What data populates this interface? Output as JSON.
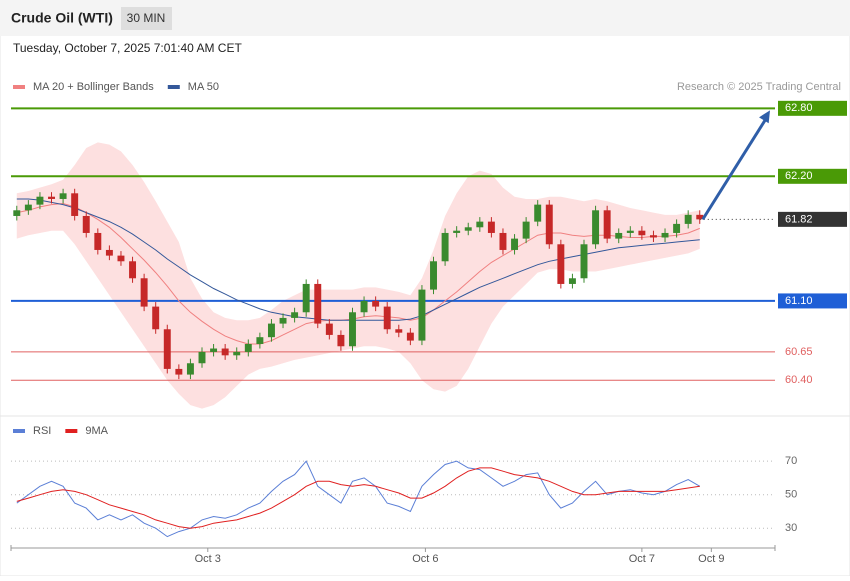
{
  "header": {
    "title": "Crude Oil (WTI)",
    "interval": "30 MIN",
    "date": "Tuesday, October 7, 2025 7:01:40 AM CET",
    "attribution": "Research © 2025 Trading Central"
  },
  "chart_data": [
    {
      "type": "candlestick",
      "xlim": [
        -0.5,
        65.5
      ],
      "ylim": [
        60.08,
        62.9
      ],
      "up_color": "#3a8a2e",
      "down_color": "#c62828",
      "open": [
        61.85,
        61.9,
        61.95,
        62.02,
        62.0,
        62.05,
        61.85,
        61.7,
        61.55,
        61.5,
        61.45,
        61.3,
        61.05,
        60.85,
        60.5,
        60.45,
        60.55,
        60.65,
        60.68,
        60.62,
        60.65,
        60.72,
        60.78,
        60.9,
        60.95,
        61.0,
        61.25,
        60.9,
        60.8,
        60.7,
        61.0,
        61.1,
        61.05,
        60.85,
        60.82,
        60.75,
        61.2,
        61.45,
        61.7,
        61.72,
        61.75,
        61.8,
        61.7,
        61.55,
        61.65,
        61.8,
        61.95,
        61.6,
        61.25,
        61.3,
        61.6,
        61.9,
        61.65,
        61.7,
        61.72,
        61.68,
        61.66,
        61.7,
        61.78,
        61.86
      ],
      "high": [
        61.94,
        61.99,
        62.06,
        62.06,
        62.09,
        62.09,
        61.89,
        61.74,
        61.59,
        61.54,
        61.49,
        61.34,
        61.09,
        60.89,
        60.54,
        60.59,
        60.69,
        60.72,
        60.72,
        60.69,
        60.76,
        60.82,
        60.94,
        60.99,
        61.04,
        61.29,
        61.29,
        60.94,
        60.84,
        61.04,
        61.14,
        61.14,
        61.09,
        60.89,
        60.86,
        61.24,
        61.49,
        61.74,
        61.76,
        61.79,
        61.84,
        61.84,
        61.74,
        61.69,
        61.84,
        61.99,
        61.99,
        61.64,
        61.34,
        61.64,
        61.94,
        61.94,
        61.74,
        61.76,
        61.76,
        61.72,
        61.74,
        61.82,
        61.9,
        61.9
      ],
      "low": [
        61.81,
        61.86,
        61.91,
        61.96,
        61.96,
        61.81,
        61.66,
        61.51,
        61.46,
        61.41,
        61.26,
        61.01,
        60.81,
        60.46,
        60.41,
        60.41,
        60.51,
        60.61,
        60.58,
        60.58,
        60.61,
        60.68,
        60.74,
        60.86,
        60.91,
        60.96,
        60.86,
        60.76,
        60.66,
        60.66,
        60.96,
        61.01,
        60.81,
        60.78,
        60.71,
        60.71,
        61.16,
        61.41,
        61.66,
        61.68,
        61.71,
        61.66,
        61.51,
        61.51,
        61.61,
        61.76,
        61.56,
        61.21,
        61.21,
        61.26,
        61.56,
        61.61,
        61.61,
        61.66,
        61.64,
        61.62,
        61.62,
        61.66,
        61.74,
        61.78
      ],
      "close": [
        61.9,
        61.95,
        62.02,
        62.0,
        62.05,
        61.85,
        61.7,
        61.55,
        61.5,
        61.45,
        61.3,
        61.05,
        60.85,
        60.5,
        60.45,
        60.55,
        60.65,
        60.68,
        60.62,
        60.65,
        60.72,
        60.78,
        60.9,
        60.95,
        61.0,
        61.25,
        60.9,
        60.8,
        60.7,
        61.0,
        61.1,
        61.05,
        60.85,
        60.82,
        60.75,
        61.2,
        61.45,
        61.7,
        61.72,
        61.75,
        61.8,
        61.7,
        61.55,
        61.65,
        61.8,
        61.95,
        61.6,
        61.25,
        61.3,
        61.6,
        61.9,
        61.65,
        61.7,
        61.72,
        61.68,
        61.66,
        61.7,
        61.78,
        61.86,
        61.82
      ],
      "series": [
        {
          "name": "MA 20 + Bollinger Bands",
          "color": "#f08080",
          "band_color": "#fde0e0",
          "values": [
            61.88,
            61.9,
            61.93,
            61.95,
            61.96,
            61.93,
            61.88,
            61.82,
            61.75,
            61.66,
            61.56,
            61.46,
            61.35,
            61.23,
            61.1,
            61.0,
            60.92,
            60.85,
            60.79,
            60.75,
            60.72,
            60.72,
            60.75,
            60.8,
            60.85,
            60.9,
            60.92,
            60.93,
            60.93,
            60.94,
            60.96,
            60.97,
            60.96,
            60.95,
            60.93,
            60.95,
            61.02,
            61.1,
            61.18,
            61.27,
            61.36,
            61.44,
            61.5,
            61.56,
            61.62,
            61.68,
            61.7,
            61.7,
            61.68,
            61.67,
            61.68,
            61.68,
            61.67,
            61.66,
            61.66,
            61.67,
            61.67,
            61.68,
            61.7,
            61.74
          ],
          "upper": [
            62.05,
            62.07,
            62.1,
            62.13,
            62.17,
            62.3,
            62.45,
            62.5,
            62.48,
            62.42,
            62.3,
            62.15,
            61.98,
            61.8,
            61.62,
            61.3,
            61.12,
            61.0,
            60.95,
            60.93,
            60.93,
            60.95,
            61.02,
            61.1,
            61.15,
            61.2,
            61.2,
            61.2,
            61.2,
            61.2,
            61.22,
            61.22,
            61.2,
            61.18,
            61.15,
            61.3,
            61.55,
            61.85,
            62.05,
            62.2,
            62.25,
            62.22,
            62.1,
            62.02,
            62.0,
            62.0,
            62.02,
            62.02,
            62.0,
            61.98,
            62.0,
            61.98,
            61.95,
            61.92,
            61.9,
            61.88,
            61.86,
            61.86,
            61.88,
            61.9
          ],
          "lower": [
            61.65,
            61.68,
            61.7,
            61.72,
            61.72,
            61.6,
            61.45,
            61.3,
            61.15,
            61.0,
            60.85,
            60.7,
            60.55,
            60.4,
            60.28,
            60.18,
            60.15,
            60.18,
            60.25,
            60.35,
            60.45,
            60.5,
            60.52,
            60.55,
            60.58,
            60.6,
            60.62,
            60.64,
            60.66,
            60.68,
            60.7,
            60.7,
            60.68,
            60.65,
            60.55,
            60.4,
            60.32,
            60.3,
            60.35,
            60.5,
            60.7,
            60.9,
            61.05,
            61.15,
            61.25,
            61.35,
            61.38,
            61.38,
            61.36,
            61.36,
            61.36,
            61.38,
            61.4,
            61.42,
            61.44,
            61.46,
            61.48,
            61.5,
            61.52,
            61.56
          ]
        },
        {
          "name": "MA 50",
          "color": "#34589a",
          "values": [
            62.0,
            62.0,
            61.99,
            61.97,
            61.95,
            61.92,
            61.88,
            61.84,
            61.8,
            61.75,
            61.69,
            61.62,
            61.55,
            61.47,
            61.4,
            61.33,
            61.27,
            61.21,
            61.16,
            61.11,
            61.07,
            61.03,
            61.0,
            60.98,
            60.96,
            60.95,
            60.94,
            60.93,
            60.93,
            60.93,
            60.93,
            60.93,
            60.93,
            60.93,
            60.94,
            60.97,
            61.02,
            61.07,
            61.12,
            61.17,
            61.22,
            61.26,
            61.3,
            61.34,
            61.38,
            61.42,
            61.45,
            61.47,
            61.49,
            61.51,
            61.53,
            61.55,
            61.57,
            61.58,
            61.59,
            61.6,
            61.61,
            61.62,
            61.63,
            61.64
          ]
        }
      ],
      "levels": [
        {
          "value": 62.8,
          "label": "62.80",
          "color": "#4a9a06",
          "boxed": true
        },
        {
          "value": 62.2,
          "label": "62.20",
          "color": "#4a9a06",
          "boxed": true
        },
        {
          "value": 61.1,
          "label": "61.10",
          "color": "#1f5fd6",
          "boxed": true
        },
        {
          "value": 60.65,
          "label": "60.65",
          "color": "#e06060",
          "boxed": false
        },
        {
          "value": 60.4,
          "label": "60.40",
          "color": "#e06060",
          "boxed": false
        }
      ],
      "last_price": {
        "value": 61.82,
        "label": "61.82"
      },
      "arrow_color": "#2f5ea8"
    },
    {
      "type": "line",
      "xlim": [
        -0.5,
        65.5
      ],
      "ylim": [
        20,
        88
      ],
      "yticks": [
        70,
        50,
        30
      ],
      "xticks": [
        {
          "value": 16.5,
          "label": "Oct 3"
        },
        {
          "value": 35.3,
          "label": "Oct 6"
        },
        {
          "value": 54,
          "label": "Oct 7"
        },
        {
          "value": 60,
          "label": "Oct 9"
        }
      ],
      "series": [
        {
          "name": "RSI",
          "color": "#5b7fd6",
          "values": [
            45,
            50,
            55,
            58,
            55,
            45,
            42,
            35,
            38,
            35,
            38,
            33,
            30,
            25,
            28,
            30,
            35,
            37,
            36,
            38,
            42,
            45,
            52,
            58,
            62,
            70,
            55,
            50,
            45,
            58,
            60,
            55,
            45,
            43,
            40,
            55,
            62,
            68,
            70,
            66,
            65,
            60,
            55,
            58,
            62,
            63,
            50,
            42,
            45,
            52,
            58,
            50,
            52,
            53,
            51,
            50,
            52,
            56,
            59,
            55
          ]
        },
        {
          "name": "9MA",
          "color": "#e02020",
          "values": [
            46,
            48,
            50,
            52,
            53,
            52,
            50,
            47,
            44,
            42,
            40,
            38,
            35,
            33,
            31,
            30,
            31,
            33,
            34,
            35,
            37,
            39,
            42,
            46,
            50,
            55,
            58,
            58,
            56,
            55,
            56,
            55,
            53,
            51,
            48,
            48,
            51,
            55,
            60,
            64,
            66,
            66,
            64,
            62,
            61,
            60,
            58,
            55,
            52,
            50,
            50,
            51,
            52,
            52,
            52,
            52,
            52,
            53,
            54,
            55
          ]
        }
      ]
    }
  ]
}
